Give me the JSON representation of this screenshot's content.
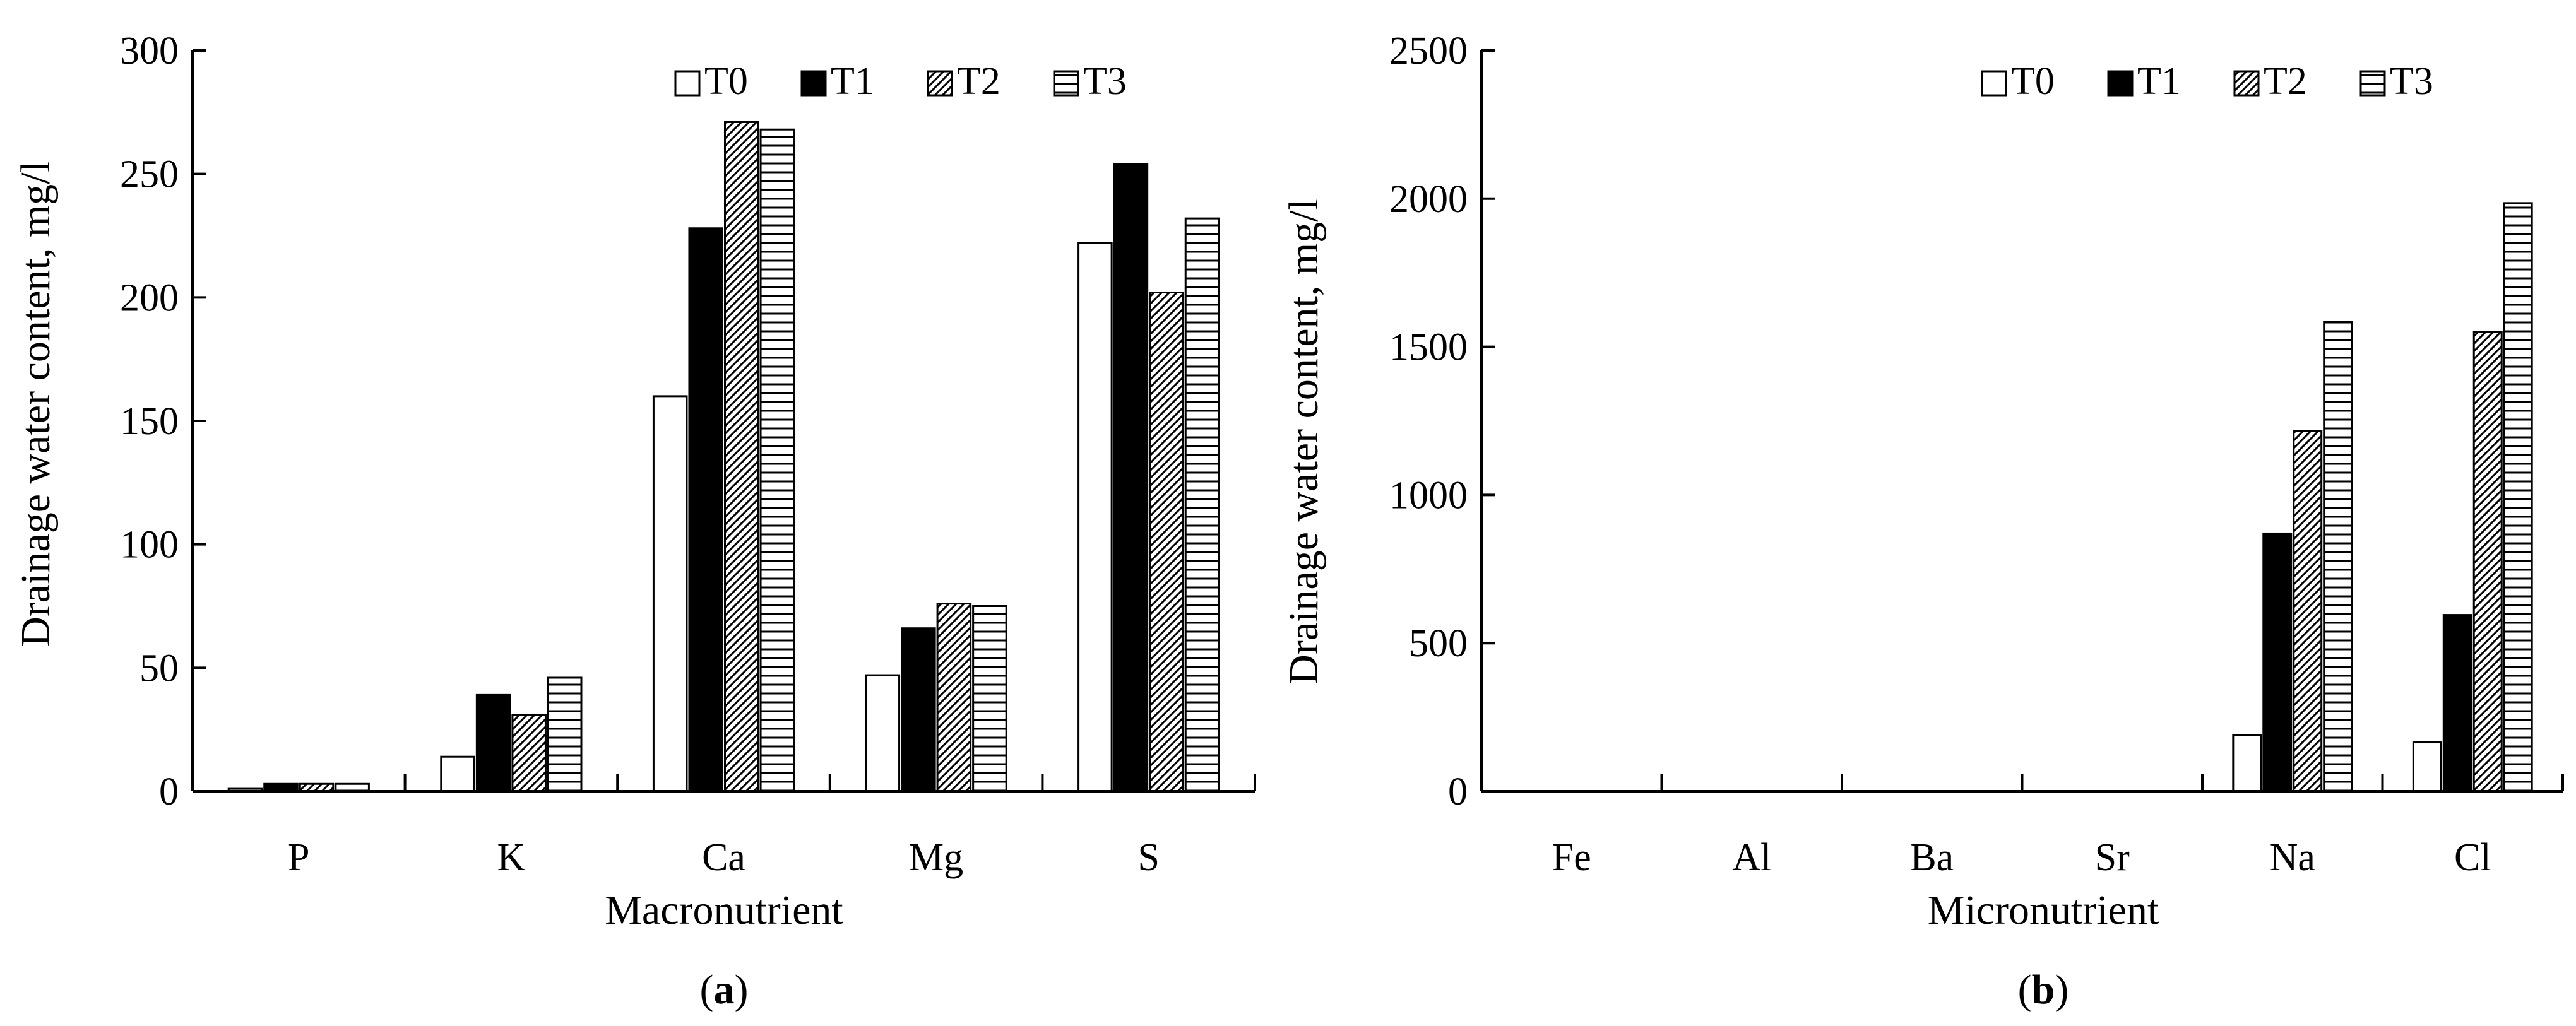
{
  "series_styles": {
    "T0": {
      "fill": "#ffffff",
      "pattern": "none"
    },
    "T1": {
      "fill": "#000000",
      "pattern": "none"
    },
    "T2": {
      "fill": "#ffffff",
      "pattern": "diagonal-hatch"
    },
    "T3": {
      "fill": "#ffffff",
      "pattern": "horizontal-lines"
    }
  },
  "chart_data": [
    {
      "type": "bar",
      "panel_label": "a",
      "title": "",
      "xlabel": "Macronutrient",
      "ylabel": "Drainage water content, mg/l",
      "ylim": [
        0,
        300
      ],
      "yticks": [
        0,
        50,
        100,
        150,
        200,
        250,
        300
      ],
      "grid": false,
      "legend_position": "top-right",
      "categories": [
        "P",
        "K",
        "Ca",
        "Mg",
        "S"
      ],
      "series": [
        {
          "name": "T0",
          "values": [
            1,
            14,
            160,
            47,
            222
          ]
        },
        {
          "name": "T1",
          "values": [
            3,
            39,
            228,
            66,
            254
          ]
        },
        {
          "name": "T2",
          "values": [
            3,
            31,
            271,
            76,
            202
          ]
        },
        {
          "name": "T3",
          "values": [
            3,
            46,
            268,
            75,
            232
          ]
        }
      ]
    },
    {
      "type": "bar",
      "panel_label": "b",
      "title": "",
      "xlabel": "Micronutrient",
      "ylabel": "Drainage water content, mg/l",
      "ylim": [
        0,
        2500
      ],
      "yticks": [
        0,
        500,
        1000,
        1500,
        2000,
        2500
      ],
      "grid": false,
      "legend_position": "top-right",
      "categories": [
        "Fe",
        "Al",
        "Ba",
        "Sr",
        "Na",
        "Cl"
      ],
      "series": [
        {
          "name": "T0",
          "values": [
            0,
            0,
            0,
            0,
            190,
            165
          ]
        },
        {
          "name": "T1",
          "values": [
            0,
            0,
            0,
            0,
            870,
            595
          ]
        },
        {
          "name": "T2",
          "values": [
            0,
            0,
            0,
            0,
            1215,
            1550
          ]
        },
        {
          "name": "T3",
          "values": [
            0,
            0,
            0,
            0,
            1585,
            1985
          ]
        }
      ]
    }
  ]
}
